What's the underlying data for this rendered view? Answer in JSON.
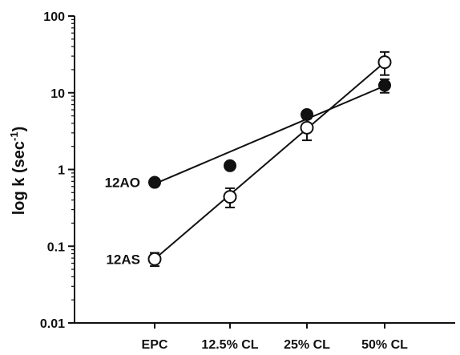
{
  "chart_data": {
    "type": "scatter",
    "yscale": "log",
    "ylim": [
      0.01,
      100
    ],
    "y_ticks": [
      "0.01",
      "0.1",
      "1",
      "10",
      "100"
    ],
    "categories": [
      "EPC",
      "12.5% CL",
      "25% CL",
      "50% CL"
    ],
    "ylabel": "log k (sec",
    "ylabel_superscript": "-1",
    "ylabel_suffix": ")",
    "grid": false,
    "series": [
      {
        "name": "12AO",
        "marker": "filled-circle",
        "color": "#111111",
        "values": [
          0.68,
          1.12,
          5.2,
          12.5
        ],
        "error_low": [
          0.68,
          1.12,
          5.2,
          10.0
        ],
        "error_high": [
          0.68,
          1.12,
          5.2,
          15.0
        ],
        "fit": [
          0.65,
          12.3
        ]
      },
      {
        "name": "12AS",
        "marker": "open-circle",
        "color": "#111111",
        "values": [
          0.068,
          0.44,
          3.5,
          25.0
        ],
        "error_low": [
          0.055,
          0.32,
          2.4,
          17.0
        ],
        "error_high": [
          0.082,
          0.57,
          4.6,
          34.0
        ],
        "fit": [
          0.068,
          25.0
        ]
      }
    ]
  }
}
